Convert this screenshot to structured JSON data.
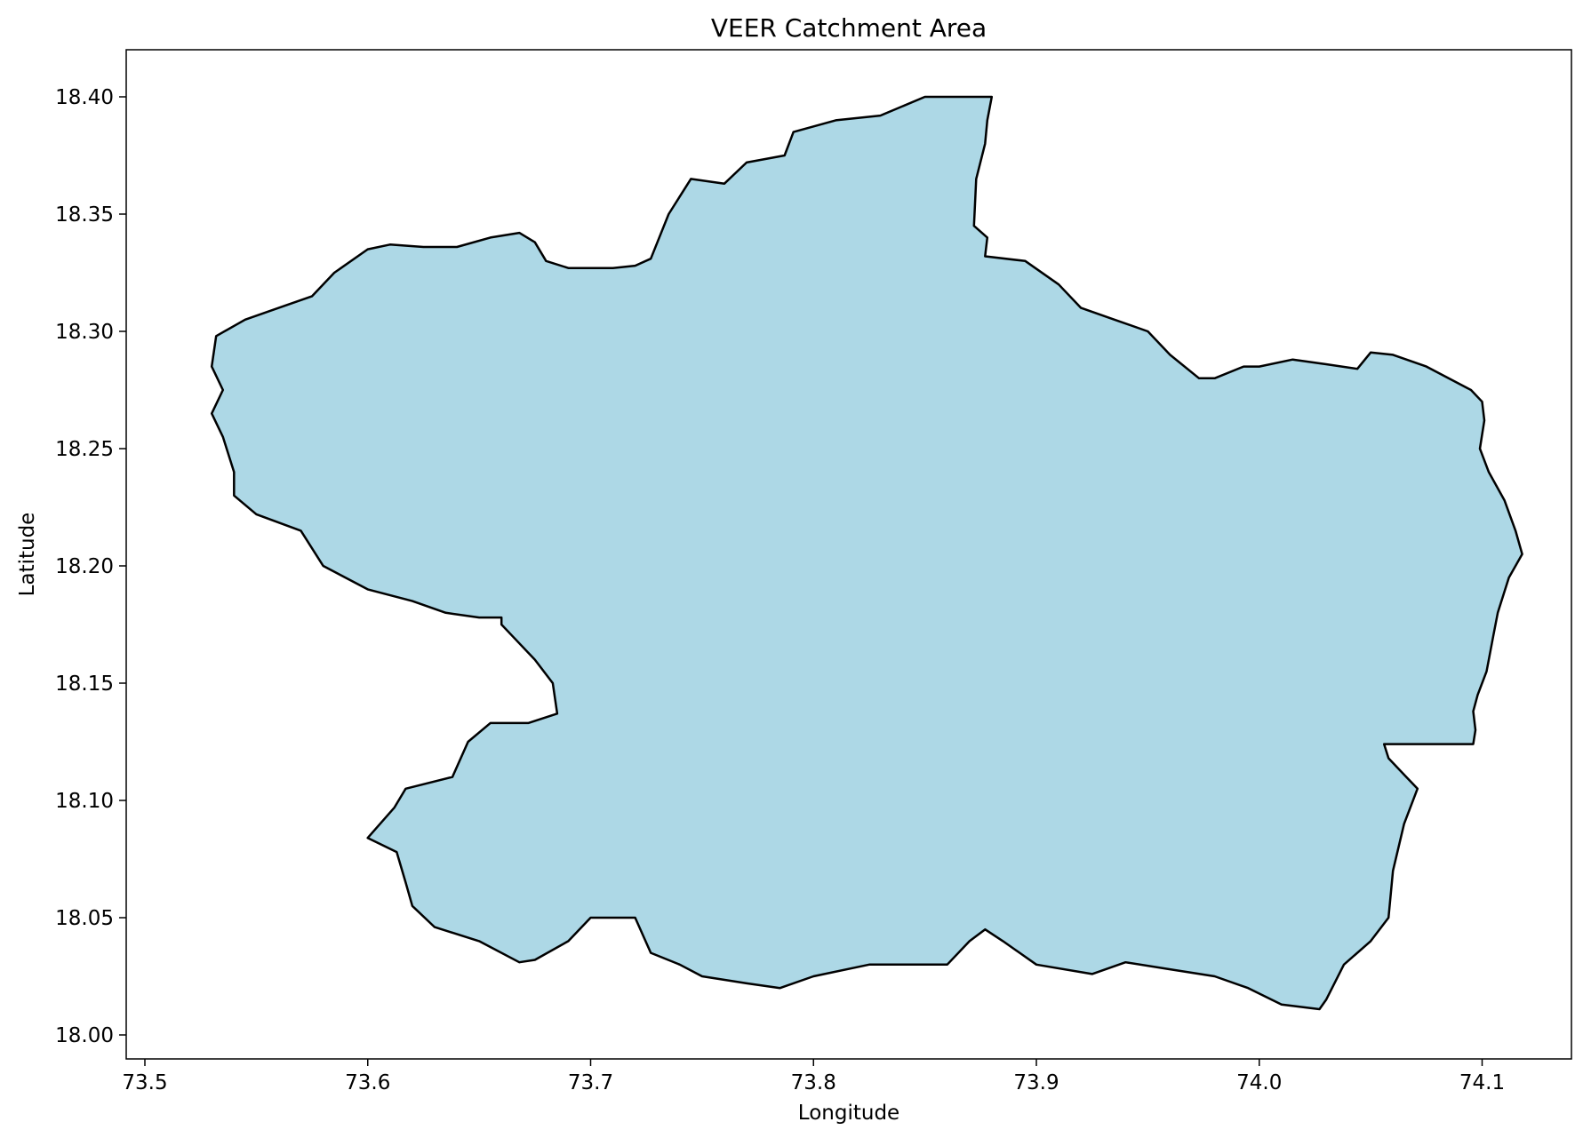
{
  "title": "VEER Catchment Area",
  "xlabel": "Longitude",
  "ylabel": "Latitude",
  "xticks": [
    "73.5",
    "73.6",
    "73.7",
    "73.8",
    "73.9",
    "74.0",
    "74.1"
  ],
  "yticks": [
    "18.00",
    "18.05",
    "18.10",
    "18.15",
    "18.20",
    "18.25",
    "18.30",
    "18.35",
    "18.40"
  ],
  "colors": {
    "fill": "#add8e6",
    "edge": "#000000",
    "background": "#ffffff"
  },
  "chart_data": {
    "type": "map",
    "title": "VEER Catchment Area",
    "xlabel": "Longitude",
    "ylabel": "Latitude",
    "xlim": [
      73.49,
      74.15
    ],
    "ylim": [
      17.99,
      18.42
    ],
    "grid": false,
    "region": {
      "name": "VEER",
      "fill": "#add8e6",
      "edge": "#000000",
      "outline": [
        [
          73.668,
          18.342
        ],
        [
          73.675,
          18.338
        ],
        [
          73.68,
          18.33
        ],
        [
          73.69,
          18.327
        ],
        [
          73.7,
          18.327
        ],
        [
          73.71,
          18.327
        ],
        [
          73.72,
          18.328
        ],
        [
          73.727,
          18.331
        ],
        [
          73.735,
          18.35
        ],
        [
          73.745,
          18.365
        ],
        [
          73.76,
          18.363
        ],
        [
          73.77,
          18.372
        ],
        [
          73.787,
          18.375
        ],
        [
          73.791,
          18.385
        ],
        [
          73.81,
          18.39
        ],
        [
          73.83,
          18.392
        ],
        [
          73.85,
          18.4
        ],
        [
          73.868,
          18.4
        ],
        [
          73.88,
          18.4
        ],
        [
          73.878,
          18.39
        ],
        [
          73.877,
          18.38
        ],
        [
          73.873,
          18.365
        ],
        [
          73.872,
          18.345
        ],
        [
          73.878,
          18.34
        ],
        [
          73.877,
          18.332
        ],
        [
          73.895,
          18.33
        ],
        [
          73.91,
          18.32
        ],
        [
          73.92,
          18.31
        ],
        [
          73.935,
          18.305
        ],
        [
          73.95,
          18.3
        ],
        [
          73.96,
          18.29
        ],
        [
          73.973,
          18.28
        ],
        [
          73.98,
          18.28
        ],
        [
          73.993,
          18.285
        ],
        [
          74.0,
          18.285
        ],
        [
          74.015,
          18.288
        ],
        [
          74.03,
          18.286
        ],
        [
          74.044,
          18.284
        ],
        [
          74.05,
          18.291
        ],
        [
          74.06,
          18.29
        ],
        [
          74.075,
          18.285
        ],
        [
          74.095,
          18.275
        ],
        [
          74.1,
          18.27
        ],
        [
          74.101,
          18.262
        ],
        [
          74.099,
          18.25
        ],
        [
          74.103,
          18.24
        ],
        [
          74.11,
          18.228
        ],
        [
          74.115,
          18.215
        ],
        [
          74.118,
          18.205
        ],
        [
          74.112,
          18.195
        ],
        [
          74.107,
          18.18
        ],
        [
          74.105,
          18.17
        ],
        [
          74.102,
          18.155
        ],
        [
          74.098,
          18.145
        ],
        [
          74.096,
          18.138
        ],
        [
          74.097,
          18.13
        ],
        [
          74.096,
          18.124
        ],
        [
          74.08,
          18.124
        ],
        [
          74.065,
          18.124
        ],
        [
          74.056,
          18.124
        ],
        [
          74.058,
          18.118
        ],
        [
          74.066,
          18.11
        ],
        [
          74.071,
          18.105
        ],
        [
          74.065,
          18.09
        ],
        [
          74.06,
          18.07
        ],
        [
          74.058,
          18.05
        ],
        [
          74.05,
          18.04
        ],
        [
          74.038,
          18.03
        ],
        [
          74.03,
          18.015
        ],
        [
          74.027,
          18.011
        ],
        [
          74.01,
          18.013
        ],
        [
          73.995,
          18.02
        ],
        [
          73.98,
          18.025
        ],
        [
          73.96,
          18.028
        ],
        [
          73.94,
          18.031
        ],
        [
          73.925,
          18.026
        ],
        [
          73.9,
          18.03
        ],
        [
          73.885,
          18.04
        ],
        [
          73.877,
          18.045
        ],
        [
          73.87,
          18.04
        ],
        [
          73.86,
          18.03
        ],
        [
          73.84,
          18.03
        ],
        [
          73.825,
          18.03
        ],
        [
          73.8,
          18.025
        ],
        [
          73.785,
          18.02
        ],
        [
          73.77,
          18.022
        ],
        [
          73.75,
          18.025
        ],
        [
          73.74,
          18.03
        ],
        [
          73.727,
          18.035
        ],
        [
          73.72,
          18.05
        ],
        [
          73.7,
          18.05
        ],
        [
          73.69,
          18.04
        ],
        [
          73.675,
          18.032
        ],
        [
          73.668,
          18.031
        ],
        [
          73.65,
          18.04
        ],
        [
          73.63,
          18.046
        ],
        [
          73.62,
          18.055
        ],
        [
          73.617,
          18.065
        ],
        [
          73.613,
          18.078
        ],
        [
          73.6,
          18.084
        ],
        [
          73.612,
          18.097
        ],
        [
          73.617,
          18.105
        ],
        [
          73.638,
          18.11
        ],
        [
          73.645,
          18.125
        ],
        [
          73.655,
          18.133
        ],
        [
          73.672,
          18.133
        ],
        [
          73.685,
          18.137
        ],
        [
          73.683,
          18.15
        ],
        [
          73.675,
          18.16
        ],
        [
          73.665,
          18.17
        ],
        [
          73.66,
          18.175
        ],
        [
          73.66,
          18.178
        ],
        [
          73.65,
          18.178
        ],
        [
          73.635,
          18.18
        ],
        [
          73.62,
          18.185
        ],
        [
          73.6,
          18.19
        ],
        [
          73.58,
          18.2
        ],
        [
          73.57,
          18.215
        ],
        [
          73.55,
          18.222
        ],
        [
          73.54,
          18.23
        ],
        [
          73.54,
          18.24
        ],
        [
          73.535,
          18.255
        ],
        [
          73.53,
          18.265
        ],
        [
          73.535,
          18.275
        ],
        [
          73.53,
          18.285
        ],
        [
          73.532,
          18.298
        ],
        [
          73.545,
          18.305
        ],
        [
          73.56,
          18.31
        ],
        [
          73.575,
          18.315
        ],
        [
          73.585,
          18.325
        ],
        [
          73.6,
          18.335
        ],
        [
          73.61,
          18.337
        ],
        [
          73.625,
          18.336
        ],
        [
          73.64,
          18.336
        ],
        [
          73.655,
          18.34
        ]
      ]
    }
  }
}
